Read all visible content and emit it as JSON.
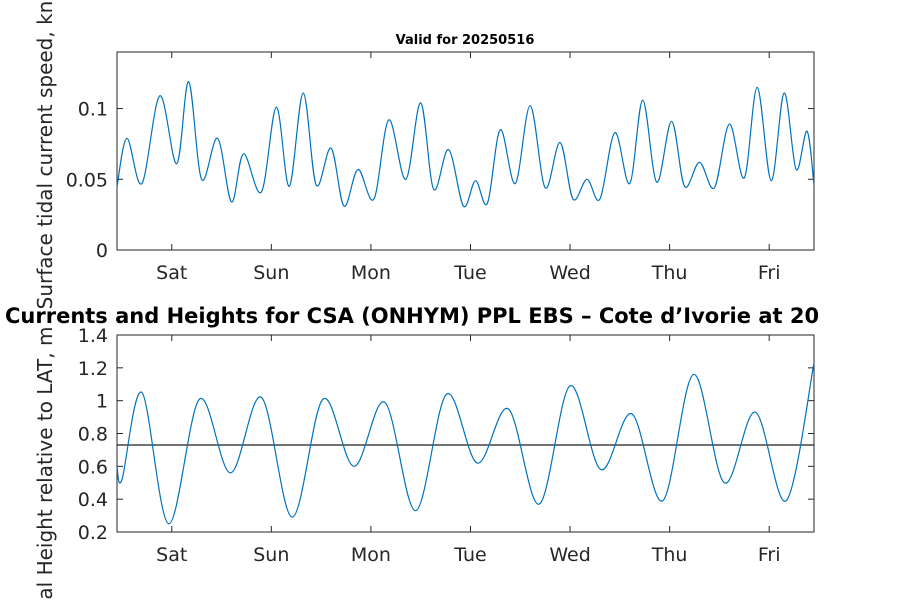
{
  "figure": {
    "top_title": "Valid for 20250516",
    "middle_title": "Currents and Heights for CSA (ONHYM) PPL EBS  – Cote d’Ivorie at 20"
  },
  "colors": {
    "series": "#0072BD",
    "axis": "#262626",
    "reference_line": "#1f1f1f",
    "background": "#ffffff"
  },
  "chart_data": [
    {
      "type": "line",
      "title": "Valid for 20250516",
      "ylabel": "Surface tidal current speed, kn",
      "xlabel": "",
      "x_ticks": [
        "Sat",
        "Sun",
        "Mon",
        "Tue",
        "Wed",
        "Thu",
        "Fri"
      ],
      "y_ticks": [
        "0",
        "0.05",
        "0.1"
      ],
      "ylim": [
        0,
        0.14
      ],
      "xlim": [
        -0.55,
        6.45
      ],
      "grid": false,
      "series": [
        {
          "x": [
            -0.55,
            -0.45,
            -0.3,
            -0.12,
            0.05,
            0.17,
            0.3,
            0.46,
            0.6,
            0.72,
            0.9,
            1.05,
            1.18,
            1.32,
            1.45,
            1.6,
            1.73,
            1.87,
            2.03,
            2.18,
            2.35,
            2.5,
            2.63,
            2.78,
            2.93,
            3.05,
            3.17,
            3.3,
            3.45,
            3.6,
            3.75,
            3.9,
            4.03,
            4.17,
            4.3,
            4.45,
            4.6,
            4.73,
            4.87,
            5.02,
            5.15,
            5.3,
            5.45,
            5.6,
            5.75,
            5.88,
            6.02,
            6.15,
            6.27,
            6.38,
            6.45
          ],
          "y": [
            0.045,
            0.079,
            0.047,
            0.109,
            0.061,
            0.119,
            0.05,
            0.079,
            0.034,
            0.068,
            0.041,
            0.101,
            0.045,
            0.111,
            0.046,
            0.072,
            0.031,
            0.057,
            0.036,
            0.092,
            0.05,
            0.104,
            0.043,
            0.071,
            0.031,
            0.049,
            0.033,
            0.085,
            0.047,
            0.102,
            0.044,
            0.076,
            0.036,
            0.05,
            0.036,
            0.083,
            0.047,
            0.106,
            0.048,
            0.091,
            0.045,
            0.062,
            0.044,
            0.089,
            0.051,
            0.115,
            0.049,
            0.111,
            0.057,
            0.084,
            0.046
          ]
        }
      ]
    },
    {
      "type": "line",
      "title": "",
      "ylabel": "Tidal Height relative to LAT, m",
      "xlabel": "",
      "x_ticks": [
        "Sat",
        "Sun",
        "Mon",
        "Tue",
        "Wed",
        "Thu",
        "Fri"
      ],
      "y_ticks": [
        "0.2",
        "0.4",
        "0.6",
        "0.8",
        "1",
        "1.2",
        "1.4"
      ],
      "ylim": [
        0.2,
        1.4
      ],
      "xlim": [
        -0.55,
        6.45
      ],
      "grid": false,
      "reference_line": {
        "y": 0.73
      },
      "series": [
        {
          "x": [
            -0.55,
            -0.5,
            -0.3,
            -0.03,
            0.28,
            0.59,
            0.9,
            1.21,
            1.52,
            1.83,
            2.14,
            2.45,
            2.76,
            3.07,
            3.38,
            3.69,
            4,
            4.31,
            4.62,
            4.93,
            5.24,
            5.55,
            5.86,
            6.17,
            6.45
          ],
          "y": [
            0.6,
            0.52,
            1.05,
            0.25,
            1.01,
            0.56,
            1.02,
            0.29,
            1.01,
            0.6,
            0.99,
            0.33,
            1.04,
            0.62,
            0.95,
            0.37,
            1.09,
            0.58,
            0.92,
            0.39,
            1.16,
            0.5,
            0.93,
            0.39,
            1.23
          ]
        }
      ]
    }
  ]
}
